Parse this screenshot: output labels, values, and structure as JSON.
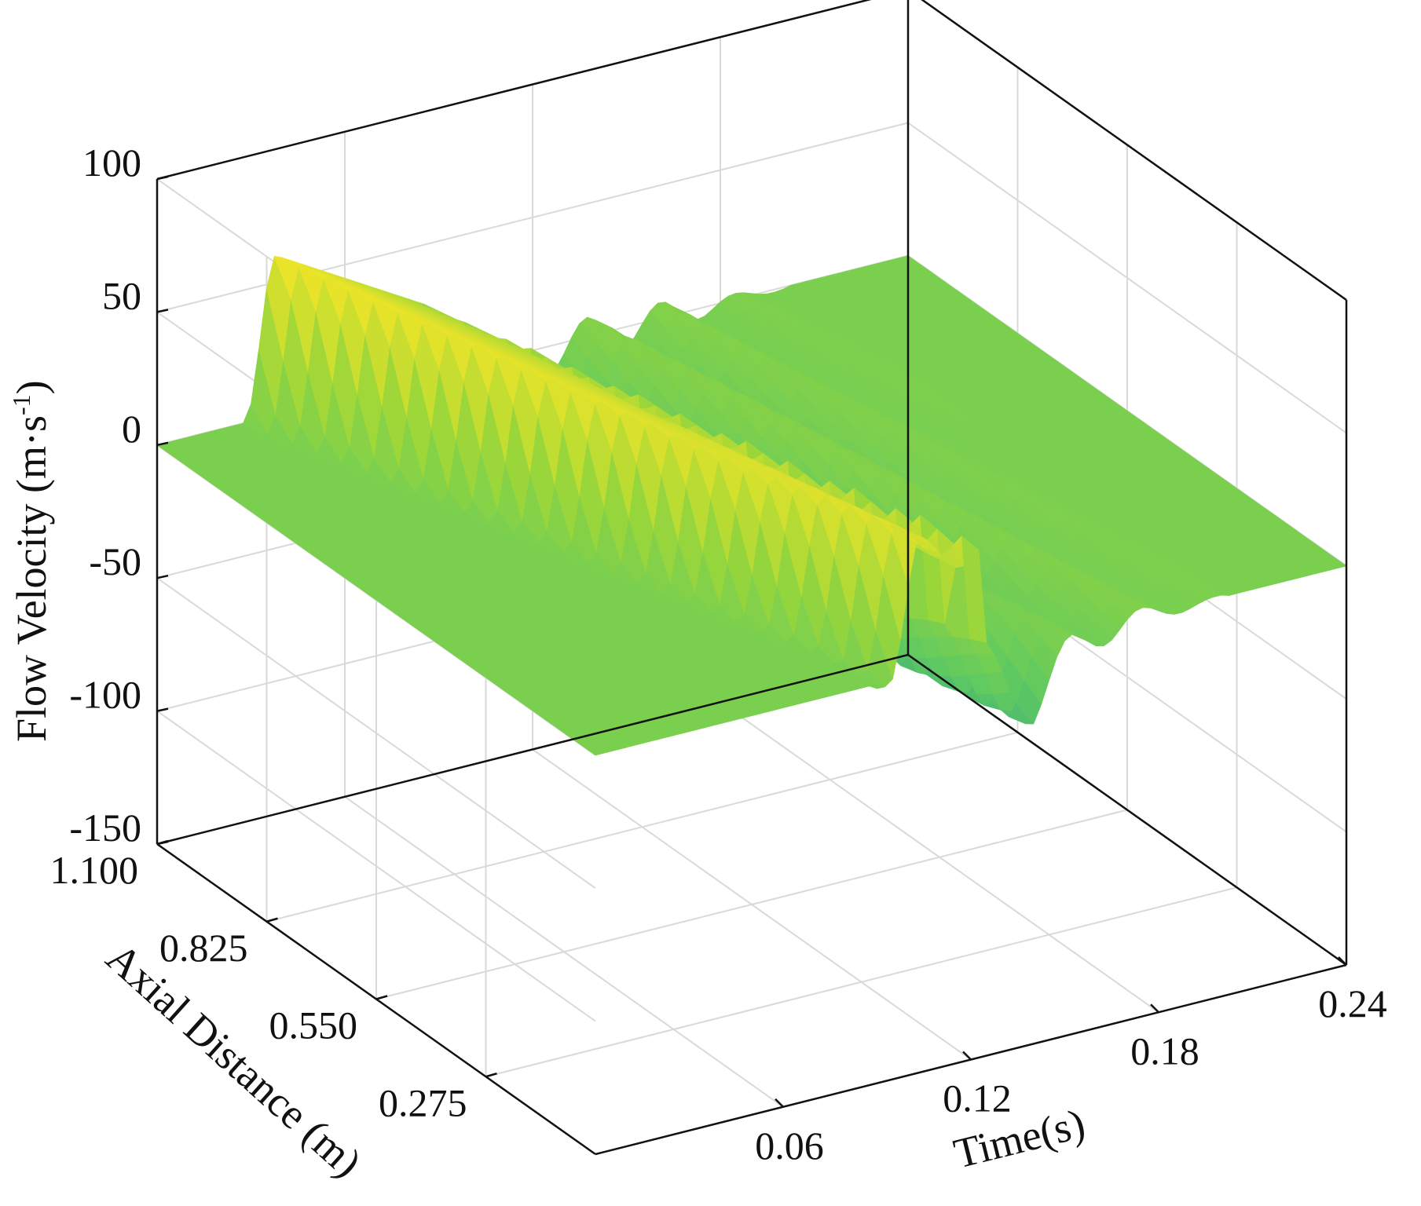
{
  "chart_data": {
    "type": "surface3d",
    "title": "",
    "axes": {
      "x": {
        "label": "Time(s)",
        "ticks": [
          "0.06",
          "0.12",
          "0.18",
          "0.24"
        ],
        "range": [
          0,
          0.24
        ]
      },
      "y": {
        "label": "Axial Distance (m)",
        "ticks": [
          "0.275",
          "0.550",
          "0.825",
          "1.100"
        ],
        "range": [
          0,
          1.1
        ]
      },
      "z": {
        "label_main": "Flow Velocity (m·s",
        "label_sup": "-1",
        "label_end": ")",
        "ticks": [
          "100",
          "50",
          "0",
          "-50",
          "-100",
          "-150"
        ],
        "range": [
          -150,
          100
        ]
      }
    },
    "grid": true,
    "colormap": "viridis",
    "color_range": [
      -150,
      100
    ],
    "colormap_stops": [
      "#440154",
      "#3b528b",
      "#21918c",
      "#5ec962",
      "#9ad63a",
      "#fde725"
    ],
    "surface": {
      "description_free": true,
      "baseline_velocity": 0,
      "forward_pulse": {
        "peak_velocity": 62,
        "peak_time_at_top": 0.035,
        "start_time_at_top": 0.028,
        "time_shift_per_m": 0.06,
        "decay_per_m": 0.2
      },
      "reverse_pulse": {
        "min_velocity": -140,
        "min_time": 0.1,
        "depth_max_distance_m": 0.3
      },
      "ripples": {
        "amplitude": 8,
        "time_range": [
          0.09,
          0.2
        ]
      }
    }
  }
}
